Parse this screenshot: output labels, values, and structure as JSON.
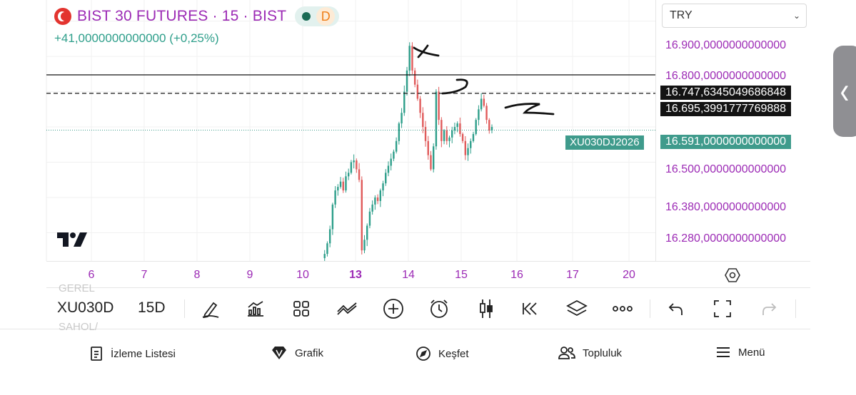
{
  "header": {
    "title": "BIST 30 FUTURES · 15 · BIST",
    "status_badge": "D",
    "change": "+41,0000000000000 (+0,25%)"
  },
  "price_scale": {
    "currency": "TRY",
    "labels": [
      "16.900,0000000000000",
      "16.800,0000000000000",
      "16.500,0000000000000",
      "16.380,0000000000000",
      "16.280,0000000000000"
    ],
    "line_tag_1": "16.747,6345049686848",
    "line_tag_2": "16.695,3991777769888",
    "last_price": "16.591,0000000000000",
    "symbol_tag": "XU030DJ2026"
  },
  "time_axis": {
    "ticks": [
      "6",
      "7",
      "8",
      "9",
      "10",
      "13",
      "14",
      "15",
      "16",
      "17",
      "20"
    ],
    "bold_tick": "13"
  },
  "toolbar": {
    "ghost_top": "GEREL",
    "ghost_bottom": "SAHOL/",
    "symbol": "XU030D",
    "interval": "15D",
    "icons": [
      "draw-icon",
      "indicators-icon",
      "templates-icon",
      "compare-icon",
      "add-icon",
      "alert-icon",
      "candles-icon",
      "replay-icon",
      "layers-icon",
      "more-icon",
      "undo-icon",
      "fullscreen-icon",
      "redo-icon"
    ]
  },
  "nav": {
    "watchlist": "İzleme Listesi",
    "chart": "Grafik",
    "explore": "Keşfet",
    "community": "Topluluk",
    "menu": "Menü"
  },
  "colors": {
    "accent_purple": "#9c2ab5",
    "up_green": "#2d9e8a",
    "down_red": "#e05a5a",
    "tag_green": "#3f9b8c"
  },
  "chart_data": {
    "type": "candlestick",
    "symbol": "XU030DJ2026",
    "interval": "15",
    "y_range": [
      16220,
      16960
    ],
    "x_ticks": [
      "6",
      "7",
      "8",
      "9",
      "10",
      "13",
      "14",
      "15",
      "16",
      "17",
      "20"
    ],
    "last_price": 16591,
    "horizontal_lines": [
      {
        "value": 16747.634504968686,
        "style": "solid"
      },
      {
        "value": 16695.399177776988,
        "style": "dashed"
      }
    ],
    "annotations": [
      "X",
      "Y",
      "Z"
    ],
    "path": [
      16228,
      16240,
      16270,
      16310,
      16380,
      16420,
      16430,
      16445,
      16420,
      16460,
      16470,
      16500,
      16505,
      16480,
      16450,
      16250,
      16280,
      16320,
      16360,
      16380,
      16400,
      16390,
      16420,
      16440,
      16470,
      16490,
      16510,
      16530,
      16560,
      16610,
      16640,
      16700,
      16760,
      16830,
      16760,
      16720,
      16680,
      16640,
      16600,
      16560,
      16520,
      16480,
      16545,
      16700,
      16620,
      16560,
      16590,
      16560,
      16570,
      16590,
      16600,
      16610,
      16580,
      16560,
      16520,
      16540,
      16560,
      16580,
      16620,
      16650,
      16680,
      16660,
      16620,
      16590,
      16600
    ]
  }
}
